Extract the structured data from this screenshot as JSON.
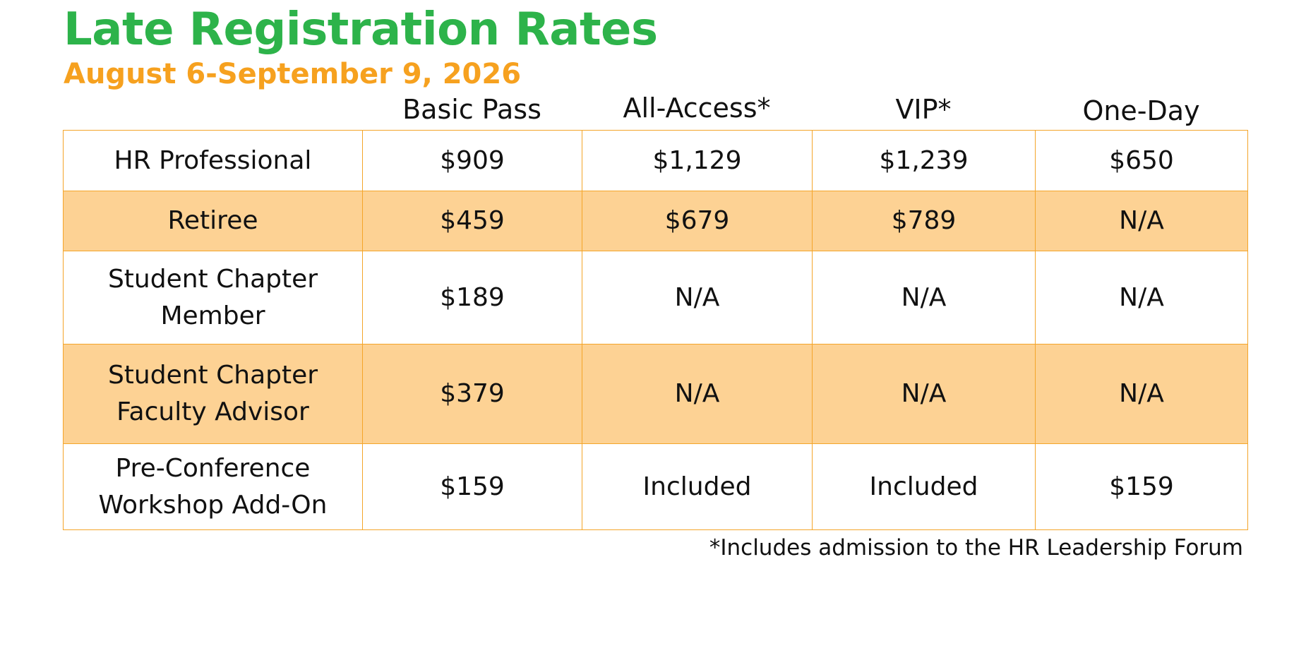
{
  "title": "Late Registration Rates",
  "subtitle": "August 6-September 9, 2026",
  "colors": {
    "title": "#2db34a",
    "subtitle": "#f6a11f",
    "border": "#f4a52a",
    "shaded_row": "#fdd294"
  },
  "columns": [
    "Basic Pass",
    "All-Access*",
    "VIP*",
    "One-Day"
  ],
  "rows": [
    {
      "label": "HR Professional",
      "cells": [
        "$909",
        "$1,129",
        "$1,239",
        "$650"
      ]
    },
    {
      "label": "Retiree",
      "cells": [
        "$459",
        "$679",
        "$789",
        "N/A"
      ]
    },
    {
      "label": "Student Chapter\nMember",
      "cells": [
        "$189",
        "N/A",
        "N/A",
        "N/A"
      ]
    },
    {
      "label": "Student Chapter\nFaculty Advisor",
      "cells": [
        "$379",
        "N/A",
        "N/A",
        "N/A"
      ]
    },
    {
      "label": "Pre-Conference\nWorkshop Add-On",
      "cells": [
        "$159",
        "Included",
        "Included",
        "$159"
      ]
    }
  ],
  "footnote": "*Includes admission to the HR Leadership Forum"
}
